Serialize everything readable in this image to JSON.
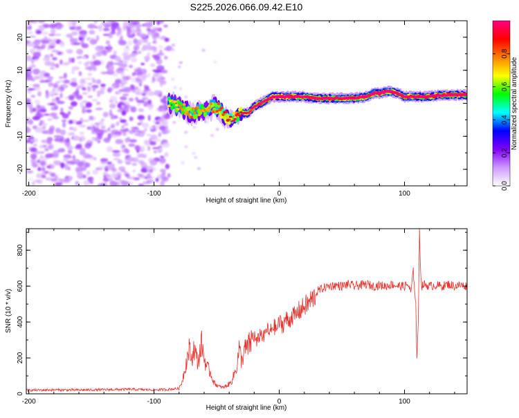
{
  "chart_data": [
    {
      "type": "heatmap",
      "title": "S225.2026.066.09.42.E10",
      "xlabel": "Height of straight line (km)",
      "ylabel": "Frequency (Hz)",
      "xlim": [
        -202,
        150
      ],
      "ylim": [
        -25,
        25
      ],
      "xticks": [
        -200,
        -100,
        0,
        100
      ],
      "yticks": [
        -20,
        -10,
        0,
        10,
        20
      ],
      "colorbar": {
        "label": "Normalized spectral amplitude",
        "range": [
          0,
          1
        ],
        "ticks": [
          "0.0",
          "0.2",
          "0.4",
          "0.6",
          "0.8"
        ],
        "colormap": [
          "#ffffff",
          "#cc99ff",
          "#8000ff",
          "#0000ff",
          "#00ffff",
          "#00ff00",
          "#ffff00",
          "#ff8000",
          "#ff0000",
          "#ff0080"
        ]
      },
      "noise_region_x": [
        -202,
        -88
      ],
      "ridge": {
        "x": [
          -88,
          -80,
          -70,
          -60,
          -50,
          -45,
          -40,
          -35,
          -30,
          -25,
          -20,
          -15,
          -10,
          -5,
          0,
          10,
          20,
          30,
          40,
          50,
          60,
          70,
          75,
          80,
          85,
          90,
          95,
          100,
          105,
          110,
          120,
          130,
          140,
          150
        ],
        "frequency": [
          0,
          -1,
          -3,
          -2,
          -1,
          -3,
          -5,
          -4,
          -3,
          -3,
          -1,
          0,
          1,
          2,
          2,
          2,
          2,
          1.5,
          1.5,
          1.5,
          1.5,
          2,
          3,
          3,
          3.5,
          3.5,
          3,
          2,
          2,
          2,
          2,
          2.5,
          2.5,
          2.5
        ],
        "amplitude": [
          0.25,
          0.3,
          0.35,
          0.3,
          0.4,
          0.45,
          0.5,
          0.55,
          0.55,
          0.6,
          0.7,
          0.75,
          0.8,
          0.85,
          0.9,
          0.85,
          0.8,
          0.75,
          0.8,
          0.85,
          0.85,
          0.8,
          0.9,
          0.9,
          0.95,
          0.9,
          0.85,
          0.8,
          0.85,
          0.8,
          0.8,
          0.85,
          0.85,
          0.8
        ]
      }
    },
    {
      "type": "line",
      "xlabel": "Height of straight line (km)",
      "ylabel": "SNR (10 * v/v)",
      "xlim": [
        -202,
        150
      ],
      "ylim": [
        0,
        920
      ],
      "xticks": [
        -200,
        -100,
        0,
        100
      ],
      "yticks": [
        0,
        200,
        400,
        600,
        800
      ],
      "color": "#e8302a",
      "series": [
        {
          "name": "SNR",
          "x": [
            -202,
            -180,
            -160,
            -140,
            -120,
            -100,
            -90,
            -80,
            -78,
            -75,
            -72,
            -70,
            -68,
            -65,
            -62,
            -60,
            -58,
            -55,
            -52,
            -50,
            -48,
            -45,
            -42,
            -40,
            -38,
            -36,
            -34,
            -32,
            -30,
            -28,
            -25,
            -22,
            -20,
            -18,
            -15,
            -12,
            -10,
            -8,
            -5,
            -2,
            0,
            3,
            5,
            8,
            10,
            13,
            15,
            18,
            20,
            23,
            25,
            28,
            30,
            35,
            40,
            45,
            50,
            55,
            60,
            65,
            70,
            75,
            80,
            85,
            90,
            95,
            100,
            103,
            105,
            107,
            108,
            109,
            110,
            111,
            112,
            113,
            114,
            116,
            120,
            125,
            130,
            135,
            140,
            145,
            150
          ],
          "y": [
            20,
            22,
            21,
            23,
            25,
            22,
            24,
            30,
            60,
            150,
            250,
            190,
            260,
            170,
            280,
            200,
            150,
            120,
            60,
            50,
            40,
            35,
            45,
            55,
            70,
            110,
            150,
            250,
            180,
            240,
            260,
            300,
            330,
            280,
            340,
            310,
            370,
            330,
            380,
            360,
            400,
            380,
            420,
            400,
            440,
            430,
            460,
            470,
            490,
            500,
            520,
            540,
            570,
            590,
            600,
            605,
            600,
            610,
            600,
            605,
            610,
            600,
            605,
            600,
            610,
            600,
            600,
            610,
            560,
            680,
            600,
            500,
            180,
            400,
            920,
            650,
            600,
            610,
            600,
            605,
            600,
            610,
            600,
            605,
            600
          ]
        }
      ]
    }
  ]
}
